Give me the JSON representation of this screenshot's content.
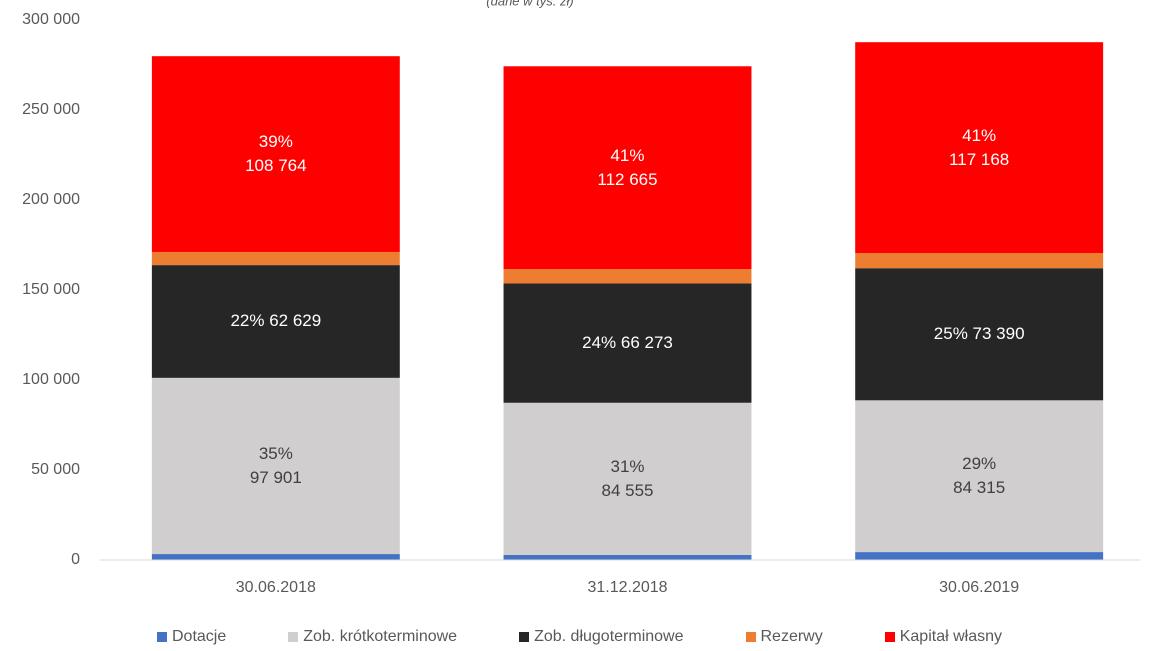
{
  "chart_data": {
    "type": "stacked_bar",
    "subtitle": "(dane w tys. zł)",
    "categories": [
      "30.06.2018",
      "31.12.2018",
      "30.06.2019"
    ],
    "series": [
      {
        "name": "Dotacje",
        "color": "#4472c4",
        "values": [
          3300,
          2800,
          4400
        ]
      },
      {
        "name": "Zob. krótkoterminowe",
        "color": "#d0cece",
        "label_color": "#404040",
        "values": [
          97901,
          84555,
          84315
        ],
        "value_labels": [
          "35%\n97 901",
          "31%\n84 555",
          "29%\n84 315"
        ]
      },
      {
        "name": "Zob. długoterminowe",
        "color": "#262626",
        "label_color": "#ffffff",
        "values": [
          62629,
          66273,
          73390
        ],
        "value_labels": [
          "22% 62 629",
          "24% 66 273",
          "25% 73 390"
        ]
      },
      {
        "name": "Rezerwy",
        "color": "#ed7d31",
        "values": [
          7300,
          8000,
          8400
        ]
      },
      {
        "name": "Kapitał własny",
        "color": "#ff0000",
        "label_color": "#ffffff",
        "values": [
          108764,
          112665,
          117168
        ],
        "value_labels": [
          "39%\n108 764",
          "41%\n112 665",
          "41%\n117 168"
        ]
      }
    ],
    "ylim": [
      0,
      300000
    ],
    "yticks": [
      0,
      {
        "value": 50000,
        "label": "50 000"
      },
      {
        "value": 100000,
        "label": "100 000"
      },
      {
        "value": 150000,
        "label": "150 000"
      },
      {
        "value": 200000,
        "label": "200 000"
      },
      {
        "value": 250000,
        "label": "250 000"
      },
      {
        "value": 300000,
        "label": "300 000"
      }
    ],
    "grid": false,
    "legend": "bottom"
  }
}
